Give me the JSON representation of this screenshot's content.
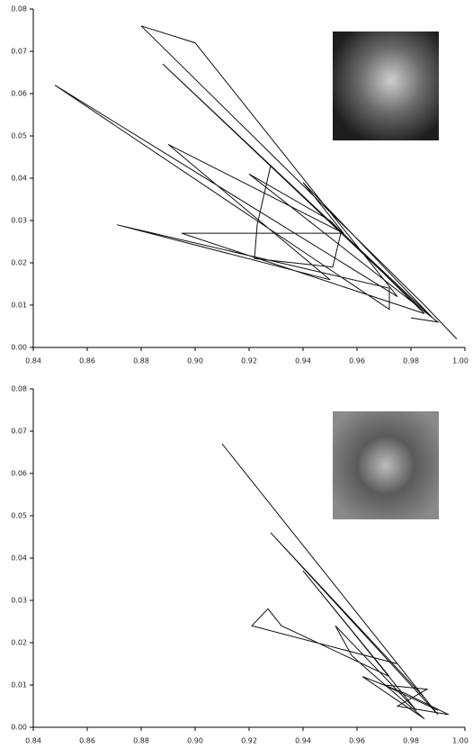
{
  "chart_data": [
    {
      "type": "line",
      "xlim": [
        0.84,
        1.0
      ],
      "ylim": [
        0,
        0.08
      ],
      "xticks": [
        {
          "value": 0.84,
          "label": "0.84"
        },
        {
          "value": 0.86,
          "label": "0.86"
        },
        {
          "value": 0.88,
          "label": "0.88"
        },
        {
          "value": 0.9,
          "label": "0.90"
        },
        {
          "value": 0.92,
          "label": "0.92"
        },
        {
          "value": 0.94,
          "label": "0.94"
        },
        {
          "value": 0.96,
          "label": "0.96"
        },
        {
          "value": 0.98,
          "label": "0.98"
        },
        {
          "value": 1.0,
          "label": "1.00"
        }
      ],
      "yticks": [
        {
          "value": 0,
          "label": "0.00"
        },
        {
          "value": 0.01,
          "label": "0.01"
        },
        {
          "value": 0.02,
          "label": "0.02"
        },
        {
          "value": 0.03,
          "label": "0.03"
        },
        {
          "value": 0.04,
          "label": "0.04"
        },
        {
          "value": 0.05,
          "label": "0.05"
        },
        {
          "value": 0.06,
          "label": "0.06"
        },
        {
          "value": 0.07,
          "label": "0.07"
        },
        {
          "value": 0.08,
          "label": "0.08"
        }
      ],
      "x": [
        0.997,
        0.985,
        0.88,
        0.9,
        0.975,
        0.848,
        0.972,
        0.972,
        0.871,
        0.95,
        0.89,
        0.955,
        0.94,
        0.988,
        0.888,
        0.984,
        0.928,
        0.923,
        0.922,
        0.951,
        0.954,
        0.895,
        0.985,
        0.95,
        0.92,
        0.99,
        0.98
      ],
      "series": [
        {
          "color": "#111111",
          "values": [
            0.002,
            0.01,
            0.076,
            0.072,
            0.012,
            0.062,
            0.009,
            0.014,
            0.029,
            0.016,
            0.048,
            0.027,
            0.039,
            0.007,
            0.067,
            0.009,
            0.043,
            0.029,
            0.021,
            0.019,
            0.027,
            0.027,
            0.008,
            0.03,
            0.041,
            0.006,
            0.007
          ]
        }
      ]
    },
    {
      "type": "line",
      "xlim": [
        0.84,
        1.0
      ],
      "ylim": [
        0,
        0.08
      ],
      "xticks": [
        {
          "value": 0.84,
          "label": "0.84"
        },
        {
          "value": 0.86,
          "label": "0.86"
        },
        {
          "value": 0.88,
          "label": "0.88"
        },
        {
          "value": 0.9,
          "label": "0.90"
        },
        {
          "value": 0.92,
          "label": "0.92"
        },
        {
          "value": 0.94,
          "label": "0.94"
        },
        {
          "value": 0.96,
          "label": "0.96"
        },
        {
          "value": 0.98,
          "label": "0.98"
        },
        {
          "value": 1.0,
          "label": "1.00"
        }
      ],
      "yticks": [
        {
          "value": 0,
          "label": "0.00"
        },
        {
          "value": 0.01,
          "label": "0.01"
        },
        {
          "value": 0.02,
          "label": "0.02"
        },
        {
          "value": 0.03,
          "label": "0.03"
        },
        {
          "value": 0.04,
          "label": "0.04"
        },
        {
          "value": 0.05,
          "label": "0.05"
        },
        {
          "value": 0.06,
          "label": "0.06"
        },
        {
          "value": 0.07,
          "label": "0.07"
        },
        {
          "value": 0.08,
          "label": "0.08"
        }
      ],
      "x": [
        0.91,
        0.985,
        0.928,
        0.99,
        0.975,
        0.921,
        0.927,
        0.932,
        0.972,
        0.94,
        0.982,
        0.952,
        0.958,
        0.965,
        0.985,
        0.962,
        0.978,
        0.994,
        0.975,
        0.986,
        0.97,
        0.99
      ],
      "series": [
        {
          "color": "#111111",
          "values": [
            0.067,
            0.007,
            0.046,
            0.003,
            0.015,
            0.024,
            0.028,
            0.024,
            0.012,
            0.037,
            0.004,
            0.024,
            0.017,
            0.013,
            0.002,
            0.012,
            0.008,
            0.003,
            0.005,
            0.009,
            0.01,
            0.004
          ]
        }
      ]
    }
  ]
}
